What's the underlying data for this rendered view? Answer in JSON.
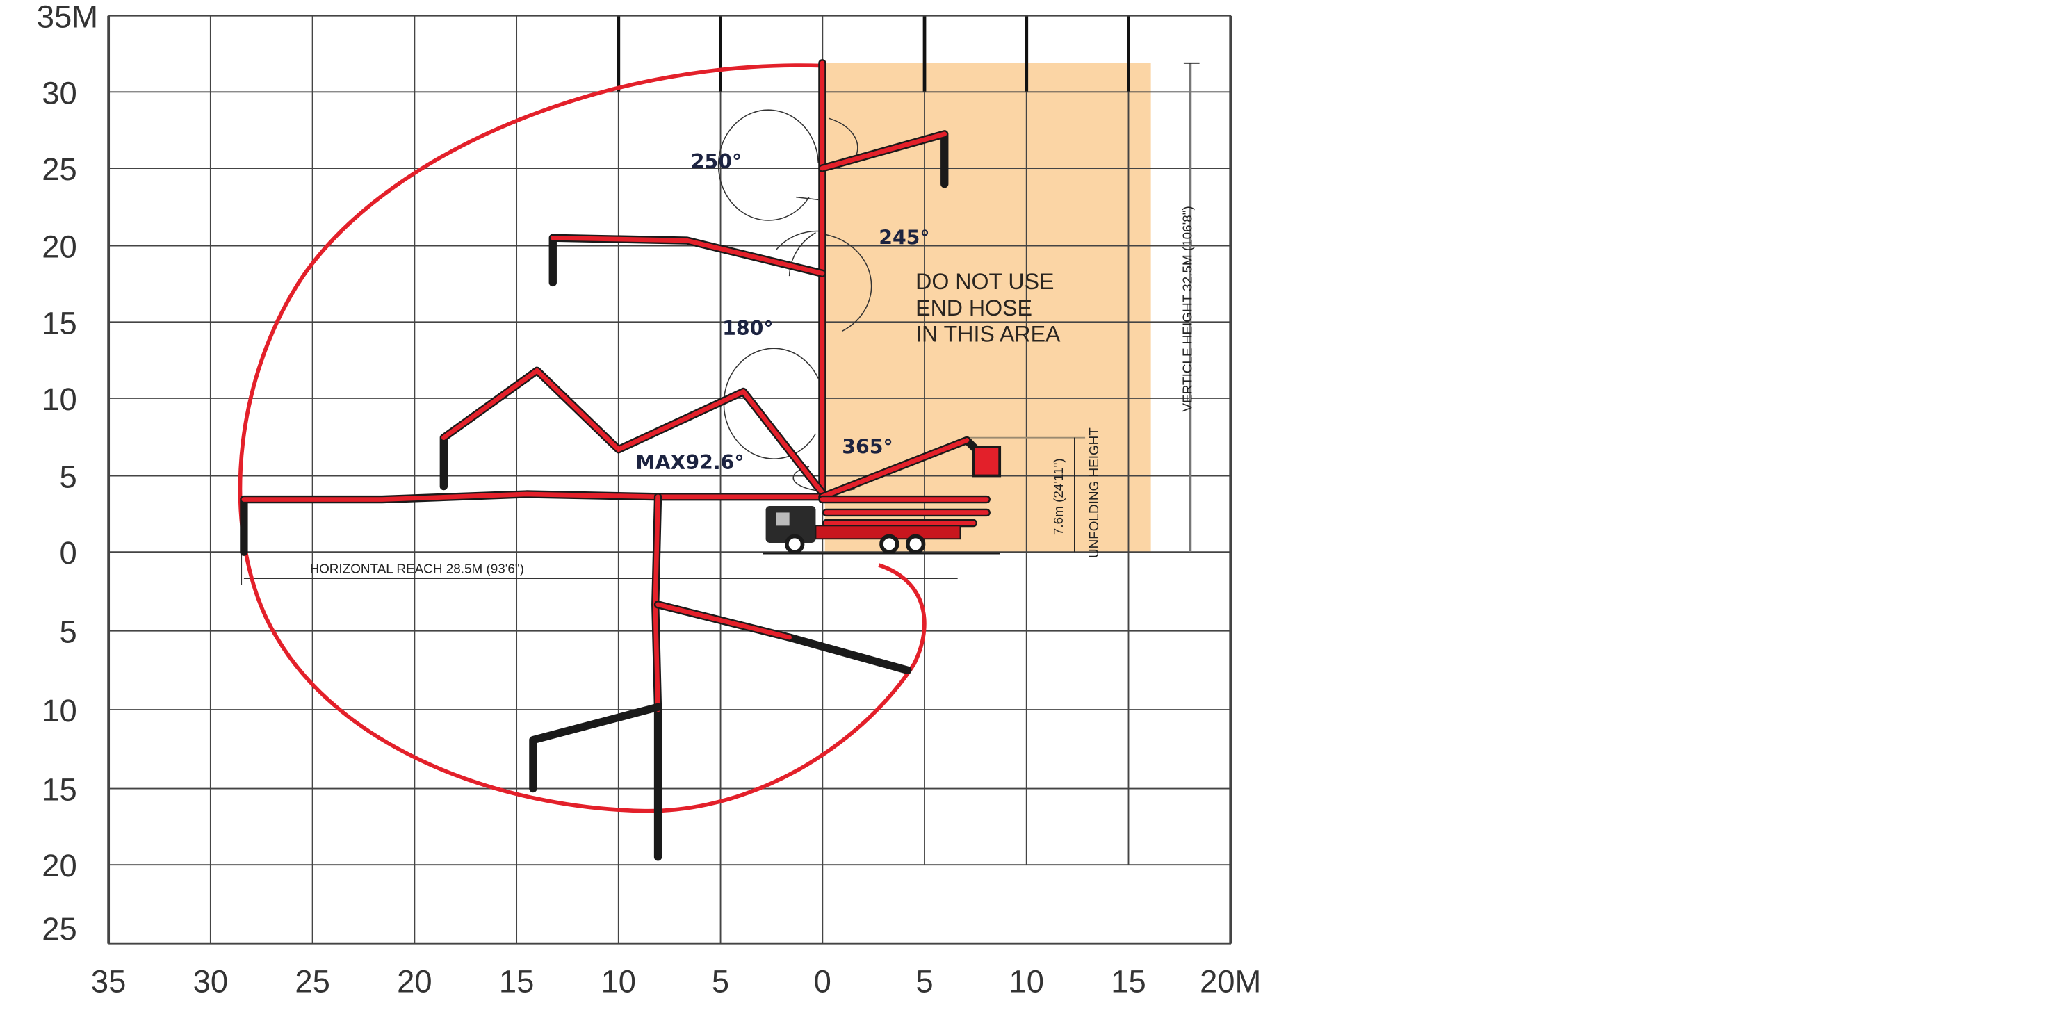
{
  "diagram": {
    "x_axis_labels": [
      "35",
      "30",
      "25",
      "20",
      "15",
      "10",
      "5",
      "0",
      "5",
      "10",
      "15",
      "20M"
    ],
    "y_axis_labels": [
      "35M",
      "30",
      "25",
      "20",
      "15",
      "10",
      "5",
      "0",
      "5",
      "10",
      "15",
      "20",
      "25"
    ],
    "angles": {
      "a250": "250°",
      "a245": "245°",
      "a180": "180°",
      "max": "MAX92.6°",
      "a365": "365°"
    },
    "warning": [
      "DO NOT USE",
      "END  HOSE",
      "IN THIS AREA"
    ],
    "vertical_height": "VERTICLE HEIGHT 32.5M (106'8\")",
    "unfolding_value": "7.6m (24'11\")",
    "unfolding_label": "UNFOLDING HEIGHT",
    "horizontal_reach": "HORIZONTAL REACH 28.5M (93'6\")",
    "colors": {
      "reach_curve": "#e3202a",
      "no_use_area": "#fbd5a5",
      "boom": "#e3202a"
    }
  }
}
